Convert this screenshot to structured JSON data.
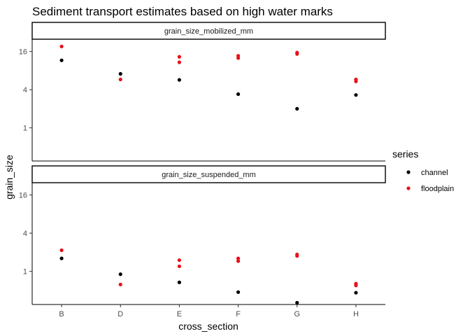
{
  "chart_data": {
    "type": "scatter",
    "title": "Sediment transport estimates based on high water marks",
    "xlabel": "cross_section",
    "ylabel": "grain_size",
    "y_scale": "log2",
    "categories": [
      "B",
      "D",
      "E",
      "F",
      "G",
      "H"
    ],
    "y_ticks": [
      1,
      4,
      16
    ],
    "y_tick_labels": [
      "1",
      "4",
      "16"
    ],
    "legend": {
      "title": "series",
      "position": "right",
      "entries": [
        "channel",
        "floodplain"
      ]
    },
    "series_colors": {
      "channel": "#000000",
      "floodplain": "#e8101a"
    },
    "grid": false,
    "panels": [
      {
        "label": "grain_size_mobilized_mm",
        "ylim": [
          0.3,
          25
        ],
        "points": [
          {
            "series": "channel",
            "x": "B",
            "y": 11.6
          },
          {
            "series": "channel",
            "x": "D",
            "y": 7.1
          },
          {
            "series": "channel",
            "x": "E",
            "y": 5.7
          },
          {
            "series": "channel",
            "x": "F",
            "y": 3.4
          },
          {
            "series": "channel",
            "x": "G",
            "y": 2.0
          },
          {
            "series": "channel",
            "x": "H",
            "y": 3.3
          },
          {
            "series": "floodplain",
            "x": "B",
            "y": 19.2
          },
          {
            "series": "floodplain",
            "x": "D",
            "y": 5.8
          },
          {
            "series": "floodplain",
            "x": "E",
            "y": 13.2
          },
          {
            "series": "floodplain",
            "x": "E",
            "y": 10.8
          },
          {
            "series": "floodplain",
            "x": "F",
            "y": 13.7
          },
          {
            "series": "floodplain",
            "x": "F",
            "y": 12.6
          },
          {
            "series": "floodplain",
            "x": "G",
            "y": 15.4
          },
          {
            "series": "floodplain",
            "x": "G",
            "y": 14.6
          },
          {
            "series": "floodplain",
            "x": "H",
            "y": 5.8
          },
          {
            "series": "floodplain",
            "x": "H",
            "y": 5.4
          }
        ]
      },
      {
        "label": "grain_size_suspended_mm",
        "ylim": [
          0.3,
          25
        ],
        "points": [
          {
            "series": "channel",
            "x": "B",
            "y": 1.6
          },
          {
            "series": "channel",
            "x": "D",
            "y": 0.9
          },
          {
            "series": "channel",
            "x": "E",
            "y": 0.67
          },
          {
            "series": "channel",
            "x": "F",
            "y": 0.47
          },
          {
            "series": "channel",
            "x": "G",
            "y": 0.32
          },
          {
            "series": "channel",
            "x": "H",
            "y": 0.46
          },
          {
            "series": "floodplain",
            "x": "B",
            "y": 2.15
          },
          {
            "series": "floodplain",
            "x": "D",
            "y": 0.62
          },
          {
            "series": "floodplain",
            "x": "E",
            "y": 1.5
          },
          {
            "series": "floodplain",
            "x": "E",
            "y": 1.2
          },
          {
            "series": "floodplain",
            "x": "F",
            "y": 1.6
          },
          {
            "series": "floodplain",
            "x": "F",
            "y": 1.45
          },
          {
            "series": "floodplain",
            "x": "G",
            "y": 1.85
          },
          {
            "series": "floodplain",
            "x": "G",
            "y": 1.75
          },
          {
            "series": "floodplain",
            "x": "H",
            "y": 0.64
          },
          {
            "series": "floodplain",
            "x": "H",
            "y": 0.6
          }
        ]
      }
    ]
  }
}
